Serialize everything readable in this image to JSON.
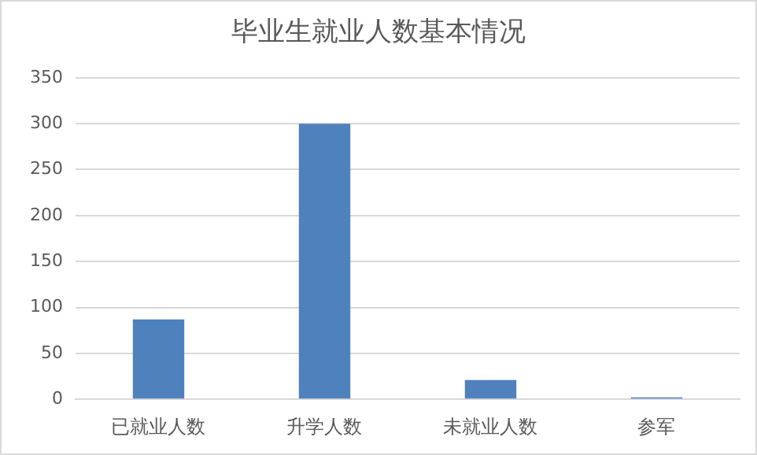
{
  "chart_data": {
    "type": "bar",
    "title": "毕业生就业人数基本情况",
    "categories": [
      "已就业人数",
      "升学人数",
      "未就业人数",
      "参军"
    ],
    "values": [
      87,
      300,
      21,
      2
    ],
    "color": "#4f81bd",
    "ylim": [
      0,
      350
    ],
    "yticks": [
      0,
      50,
      100,
      150,
      200,
      250,
      300,
      350
    ],
    "grid": "y"
  }
}
